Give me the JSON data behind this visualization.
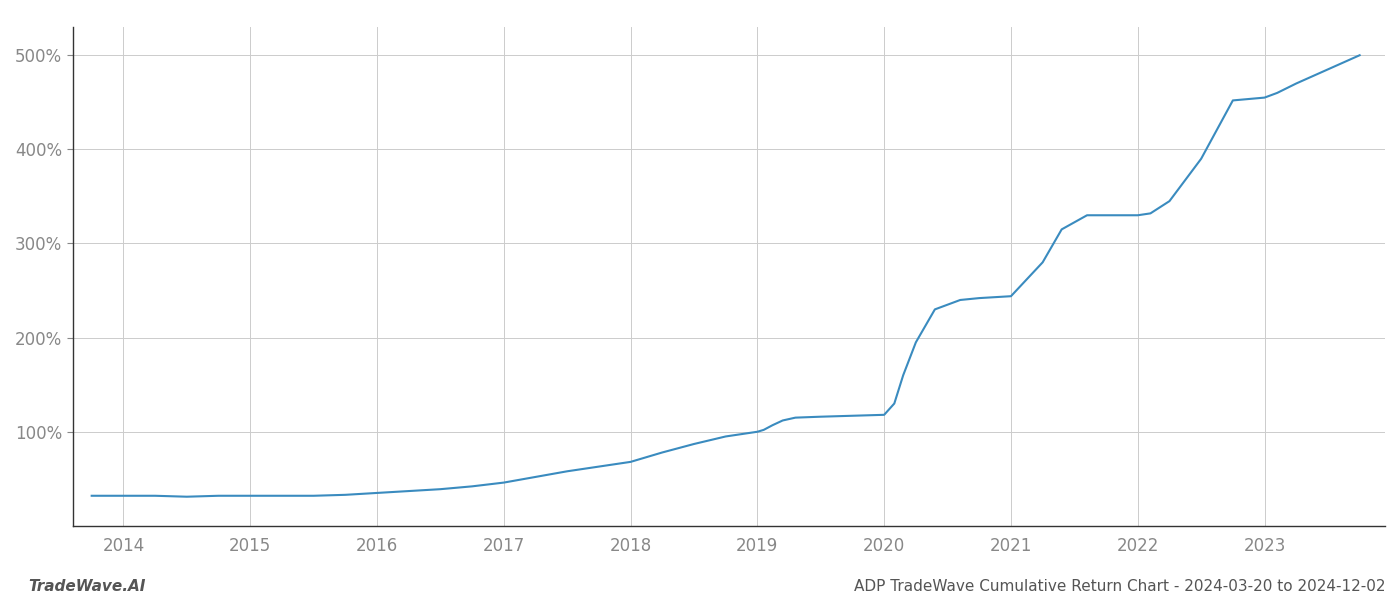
{
  "title": "ADP TradeWave Cumulative Return Chart - 2024-03-20 to 2024-12-02",
  "watermark": "TradeWave.AI",
  "line_color": "#3a8bbf",
  "background_color": "#ffffff",
  "grid_color": "#cccccc",
  "x_years": [
    2014,
    2015,
    2016,
    2017,
    2018,
    2019,
    2020,
    2021,
    2022,
    2023
  ],
  "y_ticks": [
    100,
    200,
    300,
    400,
    500
  ],
  "y_tick_labels": [
    "100%",
    "200%",
    "300%",
    "400%",
    "500%"
  ],
  "data_x": [
    2013.75,
    2014.0,
    2014.25,
    2014.5,
    2014.75,
    2015.0,
    2015.25,
    2015.5,
    2015.75,
    2016.0,
    2016.25,
    2016.5,
    2016.75,
    2017.0,
    2017.25,
    2017.5,
    2017.75,
    2018.0,
    2018.1,
    2018.25,
    2018.5,
    2018.75,
    2019.0,
    2019.05,
    2019.12,
    2019.2,
    2019.3,
    2019.5,
    2019.75,
    2020.0,
    2020.08,
    2020.15,
    2020.25,
    2020.4,
    2020.6,
    2020.75,
    2021.0,
    2021.25,
    2021.4,
    2021.6,
    2021.75,
    2022.0,
    2022.1,
    2022.25,
    2022.5,
    2022.75,
    2023.0,
    2023.1,
    2023.25,
    2023.5,
    2023.75
  ],
  "data_y": [
    32,
    32,
    32,
    31,
    32,
    32,
    32,
    32,
    33,
    35,
    37,
    39,
    42,
    46,
    52,
    58,
    63,
    68,
    72,
    78,
    87,
    95,
    100,
    102,
    107,
    112,
    115,
    116,
    117,
    118,
    130,
    160,
    195,
    230,
    240,
    242,
    244,
    280,
    315,
    330,
    330,
    330,
    332,
    345,
    390,
    452,
    455,
    460,
    470,
    485,
    500
  ],
  "xlim": [
    2013.6,
    2023.95
  ],
  "ylim": [
    0,
    530
  ],
  "line_width": 1.5,
  "title_fontsize": 11,
  "watermark_fontsize": 11,
  "tick_fontsize": 12,
  "axis_color": "#888888",
  "spine_color": "#333333"
}
